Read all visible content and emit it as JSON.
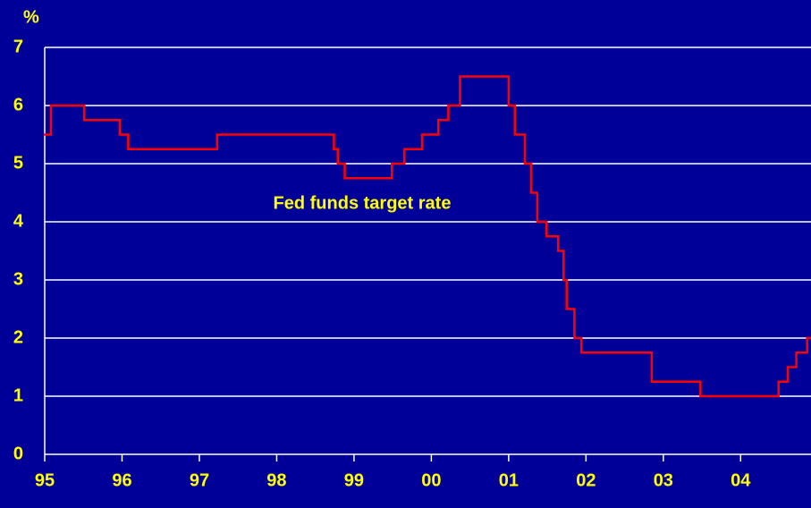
{
  "chart_data": {
    "type": "step",
    "y_axis_label": "%",
    "annotation": "Fed funds target rate",
    "color": "#ff0000",
    "grid": true,
    "x": [
      1995.0,
      1995.08,
      1995.51,
      1995.97,
      1996.08,
      1997.23,
      1998.74,
      1998.79,
      1998.88,
      1999.49,
      1999.65,
      1999.88,
      2000.09,
      2000.22,
      2000.37,
      2001.0,
      2001.08,
      2001.21,
      2001.29,
      2001.37,
      2001.49,
      2001.64,
      2001.71,
      2001.75,
      2001.85,
      2001.94,
      2002.85,
      2003.48,
      2004.49,
      2004.61,
      2004.72,
      2004.86
    ],
    "values": [
      5.5,
      6.0,
      5.75,
      5.5,
      5.25,
      5.5,
      5.25,
      5.0,
      4.75,
      5.0,
      5.25,
      5.5,
      5.75,
      6.0,
      6.5,
      6.0,
      5.5,
      5.0,
      4.5,
      4.0,
      3.75,
      3.5,
      3.0,
      2.5,
      2.0,
      1.75,
      1.25,
      1.0,
      1.25,
      1.5,
      1.75,
      2.0
    ],
    "xlim": [
      1995,
      2004.91
    ],
    "xticks": [
      {
        "value": 1995,
        "label": "95"
      },
      {
        "value": 1996,
        "label": "96"
      },
      {
        "value": 1997,
        "label": "97"
      },
      {
        "value": 1998,
        "label": "98"
      },
      {
        "value": 1999,
        "label": "99"
      },
      {
        "value": 2000,
        "label": "00"
      },
      {
        "value": 2001,
        "label": "01"
      },
      {
        "value": 2002,
        "label": "02"
      },
      {
        "value": 2003,
        "label": "03"
      },
      {
        "value": 2004,
        "label": "04"
      }
    ],
    "ylim": [
      0,
      7
    ],
    "yticks": [
      0,
      1,
      2,
      3,
      4,
      5,
      6,
      7
    ]
  }
}
